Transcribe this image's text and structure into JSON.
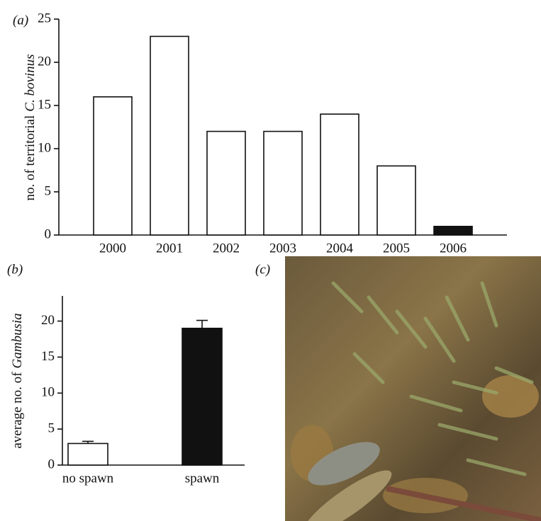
{
  "chart_data": [
    {
      "type": "bar",
      "panel_label": "(a)",
      "ylabel": {
        "text": "no. of territorial",
        "italic": "C. bovinus"
      },
      "categories": [
        "2000",
        "2001",
        "2002",
        "2003",
        "2004",
        "2005",
        "2006"
      ],
      "values": [
        16,
        23,
        12,
        12,
        14,
        8,
        1
      ],
      "colors": [
        "#ffffff",
        "#ffffff",
        "#ffffff",
        "#ffffff",
        "#ffffff",
        "#ffffff",
        "#111111"
      ],
      "ylim": [
        0,
        25
      ],
      "yticks": [
        0,
        5,
        10,
        15,
        20,
        25
      ]
    },
    {
      "type": "bar",
      "panel_label": "(b)",
      "ylabel": {
        "text": "average no. of",
        "italic": "Gambusia"
      },
      "categories": [
        "no spawn",
        "spawn"
      ],
      "values": [
        3,
        19
      ],
      "errors": [
        0.3,
        1.1
      ],
      "colors": [
        "#ffffff",
        "#111111"
      ],
      "ylim": [
        0,
        23.5
      ],
      "yticks": [
        0,
        5,
        10,
        15,
        20
      ]
    }
  ],
  "photo": {
    "label": "(c)"
  }
}
